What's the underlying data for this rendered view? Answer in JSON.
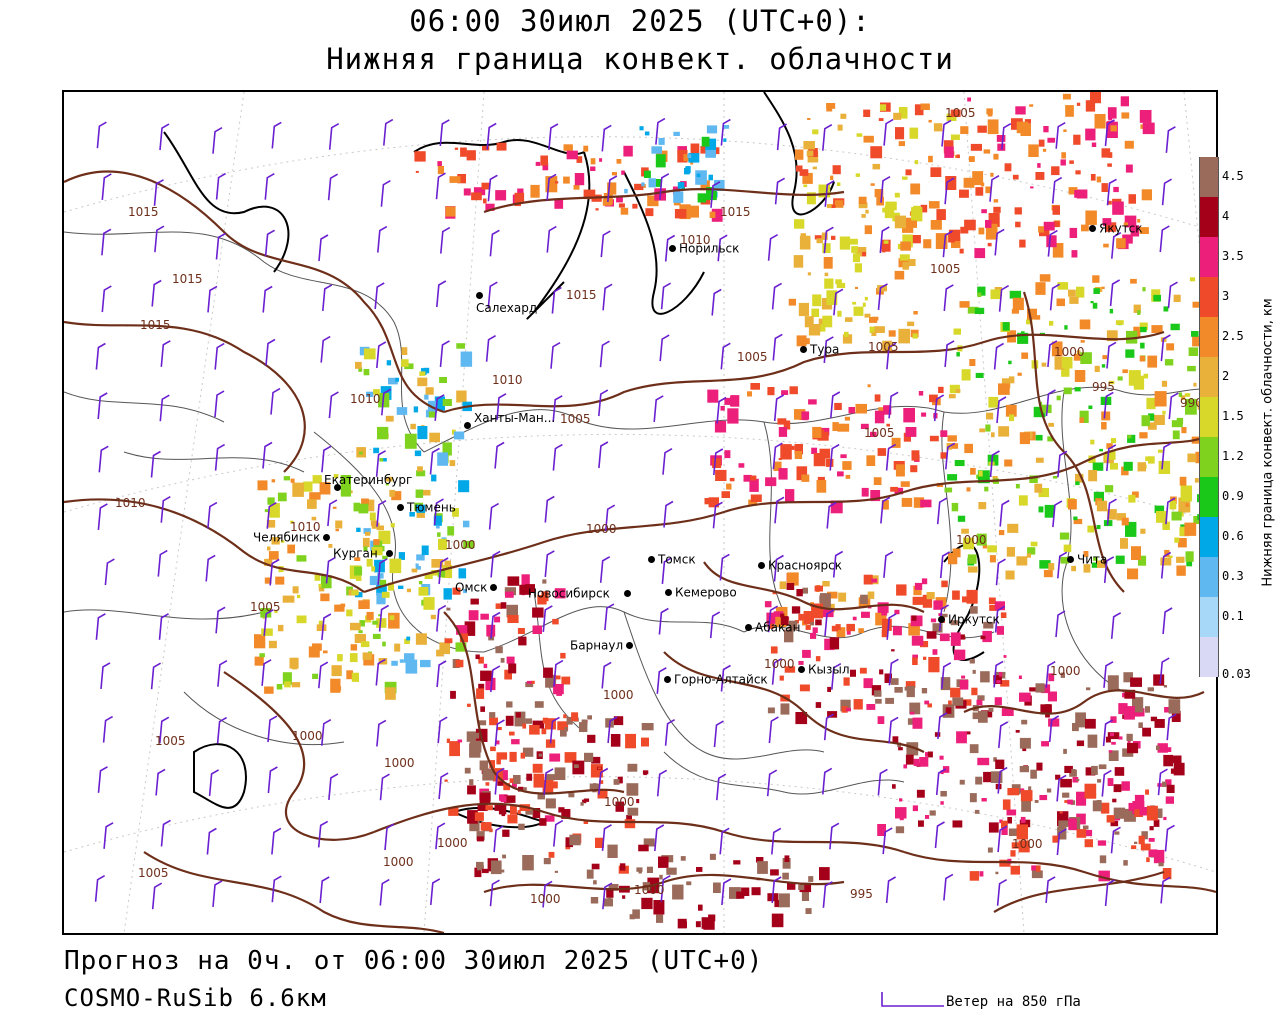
{
  "header": {
    "title_line1": "06:00 30июл 2025 (UTC+0):",
    "title_line2": "Нижняя граница конвект. облачности"
  },
  "footer": {
    "forecast": "Прогноз на 0ч. от 06:00 30июл 2025 (UTC+0)",
    "model": "COSMO-RuSib 6.6км"
  },
  "wind_key": {
    "label": "Ветер на 850 гПа",
    "color": "#6a1fd0"
  },
  "legend": {
    "title": "Нижняя граница конвект. облачности, км",
    "levels": [
      "0.03",
      "0.1",
      "0.3",
      "0.6",
      "0.9",
      "1.2",
      "1.5",
      "2",
      "2.5",
      "3",
      "3.5",
      "4",
      "4.5"
    ],
    "colors": [
      "#d9d9f5",
      "#a8d8f8",
      "#5fb8f0",
      "#00a8e8",
      "#19c819",
      "#7fd31f",
      "#d7d82a",
      "#e9b03a",
      "#f28a2a",
      "#ef4a2a",
      "#ec1f7a",
      "#a5001a",
      "#9a6a5a"
    ]
  },
  "cities": [
    {
      "name": "Салехард",
      "icon": "city-dot"
    },
    {
      "name": "Норильск",
      "icon": "city-dot"
    },
    {
      "name": "Якутск",
      "icon": "city-dot"
    },
    {
      "name": "Тура",
      "icon": "city-dot"
    },
    {
      "name": "Ханты-Ман...",
      "icon": "city-dot"
    },
    {
      "name": "Екатеринбург",
      "icon": "city-dot"
    },
    {
      "name": "Тюмень",
      "icon": "city-dot"
    },
    {
      "name": "Челябинск",
      "icon": "city-dot"
    },
    {
      "name": "Курган",
      "icon": "city-dot"
    },
    {
      "name": "Омск",
      "icon": "city-dot"
    },
    {
      "name": "Новосибирск",
      "icon": "city-dot"
    },
    {
      "name": "Томск",
      "icon": "city-dot"
    },
    {
      "name": "Кемерово",
      "icon": "city-dot"
    },
    {
      "name": "Красноярск",
      "icon": "city-dot"
    },
    {
      "name": "Абакан",
      "icon": "city-dot"
    },
    {
      "name": "Иркутск",
      "icon": "city-dot"
    },
    {
      "name": "Чита",
      "icon": "city-dot"
    },
    {
      "name": "Барнаул",
      "icon": "city-dot"
    },
    {
      "name": "Горно-Алтайск",
      "icon": "city-dot"
    },
    {
      "name": "Кызыл",
      "icon": "city-dot"
    }
  ],
  "isobars": [
    "1015",
    "1015",
    "1015",
    "1010",
    "1010",
    "1005",
    "1015",
    "1010",
    "1005",
    "1005",
    "1005",
    "1000",
    "995",
    "990",
    "1005",
    "1010",
    "1015",
    "1000",
    "1000",
    "1005",
    "1005",
    "1000",
    "1000",
    "1000",
    "1000",
    "1000",
    "1000",
    "1000",
    "1000",
    "1005",
    "1000",
    "1000",
    "995",
    "1000",
    "1000",
    "1010",
    "1005"
  ],
  "map_colors": {
    "coast": "#000000",
    "isobar": "#6e2f1a",
    "border": "#555555",
    "wind": "#6a1fd0"
  }
}
